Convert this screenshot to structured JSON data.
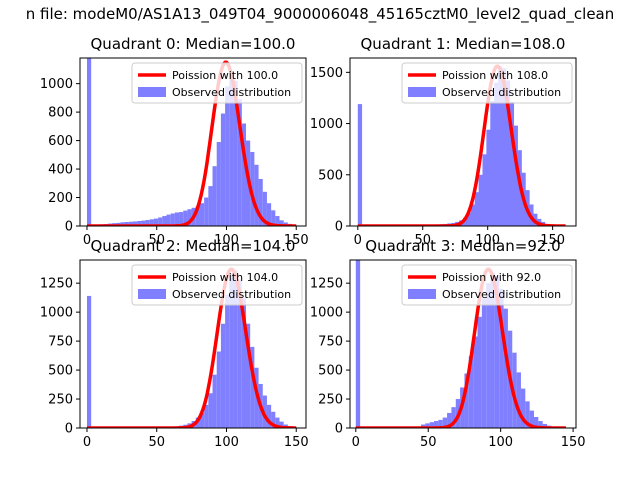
{
  "figure": {
    "title": "n file: modeM0/AS1A13_049T04_9000006048_45165cztM0_level2_quad_clean"
  },
  "colors": {
    "observed": "#7f7fff",
    "poisson": "#ff0000",
    "axes": "#000000"
  },
  "legend_labels": [
    "Poission with",
    "Observed distribution"
  ],
  "chart_data": [
    {
      "type": "bar",
      "title": "Quadrant 0: Median=100.0",
      "median": 100.0,
      "legend": [
        "Poission with 100.0",
        "Observed distribution"
      ],
      "xlim": [
        -5,
        157
      ],
      "ylim": [
        0,
        1180
      ],
      "xticks": [
        0,
        50,
        100,
        150
      ],
      "yticks": [
        0,
        200,
        400,
        600,
        800,
        1000
      ],
      "bin_width": 3,
      "hist_bins": [
        [
          0,
          1180
        ],
        [
          3,
          8
        ],
        [
          6,
          10
        ],
        [
          9,
          12
        ],
        [
          12,
          14
        ],
        [
          15,
          17
        ],
        [
          18,
          20
        ],
        [
          21,
          22
        ],
        [
          24,
          26
        ],
        [
          27,
          28
        ],
        [
          30,
          30
        ],
        [
          33,
          32
        ],
        [
          36,
          35
        ],
        [
          39,
          38
        ],
        [
          42,
          42
        ],
        [
          45,
          47
        ],
        [
          48,
          52
        ],
        [
          51,
          60
        ],
        [
          54,
          70
        ],
        [
          57,
          80
        ],
        [
          60,
          88
        ],
        [
          63,
          95
        ],
        [
          66,
          98
        ],
        [
          69,
          108
        ],
        [
          72,
          118
        ],
        [
          75,
          128
        ],
        [
          78,
          140
        ],
        [
          81,
          160
        ],
        [
          84,
          200
        ],
        [
          87,
          280
        ],
        [
          90,
          420
        ],
        [
          93,
          590
        ],
        [
          96,
          790
        ],
        [
          99,
          980
        ],
        [
          102,
          1060
        ],
        [
          105,
          1020
        ],
        [
          108,
          890
        ],
        [
          111,
          720
        ],
        [
          114,
          600
        ],
        [
          117,
          520
        ],
        [
          120,
          430
        ],
        [
          123,
          330
        ],
        [
          126,
          240
        ],
        [
          129,
          160
        ],
        [
          132,
          110
        ],
        [
          135,
          70
        ],
        [
          138,
          40
        ],
        [
          141,
          25
        ],
        [
          144,
          15
        ],
        [
          147,
          8
        ]
      ],
      "poisson_mean": 100,
      "poisson_peak": 1150,
      "poisson_x": [
        0,
        150
      ]
    },
    {
      "type": "bar",
      "title": "Quadrant 1: Median=108.0",
      "median": 108.0,
      "legend": [
        "Poission with 108.0",
        "Observed distribution"
      ],
      "xlim": [
        -6,
        168
      ],
      "ylim": [
        0,
        1640
      ],
      "xticks": [
        0,
        50,
        100,
        150
      ],
      "yticks": [
        0,
        500,
        1000,
        1500
      ],
      "bin_width": 3.3,
      "hist_bins": [
        [
          0,
          1190
        ],
        [
          60,
          15
        ],
        [
          63,
          18
        ],
        [
          66,
          20
        ],
        [
          69,
          25
        ],
        [
          72,
          30
        ],
        [
          75,
          40
        ],
        [
          78,
          55
        ],
        [
          81,
          80
        ],
        [
          84,
          130
        ],
        [
          87,
          210
        ],
        [
          90,
          330
        ],
        [
          93,
          500
        ],
        [
          96,
          700
        ],
        [
          99,
          940
        ],
        [
          102,
          1220
        ],
        [
          105,
          1400
        ],
        [
          108,
          1560
        ],
        [
          111,
          1540
        ],
        [
          114,
          1420
        ],
        [
          117,
          1210
        ],
        [
          120,
          980
        ],
        [
          123,
          740
        ],
        [
          126,
          520
        ],
        [
          129,
          350
        ],
        [
          132,
          210
        ],
        [
          135,
          120
        ],
        [
          138,
          70
        ],
        [
          141,
          40
        ],
        [
          144,
          20
        ],
        [
          147,
          12
        ],
        [
          150,
          8
        ]
      ],
      "poisson_mean": 108,
      "poisson_peak": 1560,
      "poisson_x": [
        0,
        160
      ]
    },
    {
      "type": "bar",
      "title": "Quadrant 2: Median=104.0",
      "median": 104.0,
      "legend": [
        "Poission with 104.0",
        "Observed distribution"
      ],
      "xlim": [
        -5,
        157
      ],
      "ylim": [
        0,
        1450
      ],
      "xticks": [
        0,
        50,
        100,
        150
      ],
      "yticks": [
        0,
        250,
        500,
        750,
        1000,
        1250
      ],
      "bin_width": 3,
      "hist_bins": [
        [
          0,
          1140
        ],
        [
          57,
          10
        ],
        [
          60,
          12
        ],
        [
          63,
          15
        ],
        [
          66,
          20
        ],
        [
          69,
          28
        ],
        [
          72,
          40
        ],
        [
          75,
          60
        ],
        [
          78,
          90
        ],
        [
          81,
          130
        ],
        [
          84,
          200
        ],
        [
          87,
          300
        ],
        [
          90,
          460
        ],
        [
          93,
          660
        ],
        [
          96,
          900
        ],
        [
          99,
          1150
        ],
        [
          102,
          1330
        ],
        [
          105,
          1360
        ],
        [
          108,
          1280
        ],
        [
          111,
          1120
        ],
        [
          114,
          900
        ],
        [
          117,
          700
        ],
        [
          120,
          520
        ],
        [
          123,
          380
        ],
        [
          126,
          280
        ],
        [
          129,
          200
        ],
        [
          132,
          140
        ],
        [
          135,
          90
        ],
        [
          138,
          55
        ],
        [
          141,
          30
        ],
        [
          144,
          15
        ],
        [
          147,
          8
        ]
      ],
      "poisson_mean": 104,
      "poisson_peak": 1370,
      "poisson_x": [
        0,
        150
      ]
    },
    {
      "type": "bar",
      "title": "Quadrant 3: Median=92.0",
      "median": 92.0,
      "legend": [
        "Poission with 92.0",
        "Observed distribution"
      ],
      "xlim": [
        -4,
        152
      ],
      "ylim": [
        0,
        1450
      ],
      "xticks": [
        0,
        50,
        100,
        150
      ],
      "yticks": [
        0,
        250,
        500,
        750,
        1000,
        1250
      ],
      "bin_width": 3,
      "hist_bins": [
        [
          0,
          1450
        ],
        [
          45,
          30
        ],
        [
          48,
          40
        ],
        [
          51,
          50
        ],
        [
          54,
          60
        ],
        [
          57,
          70
        ],
        [
          60,
          90
        ],
        [
          63,
          130
        ],
        [
          66,
          180
        ],
        [
          69,
          250
        ],
        [
          72,
          350
        ],
        [
          75,
          470
        ],
        [
          78,
          620
        ],
        [
          81,
          790
        ],
        [
          84,
          960
        ],
        [
          87,
          1120
        ],
        [
          90,
          1250
        ],
        [
          93,
          1340
        ],
        [
          96,
          1310
        ],
        [
          99,
          1200
        ],
        [
          102,
          1030
        ],
        [
          105,
          840
        ],
        [
          108,
          650
        ],
        [
          111,
          480
        ],
        [
          114,
          340
        ],
        [
          117,
          230
        ],
        [
          120,
          150
        ],
        [
          123,
          95
        ],
        [
          126,
          60
        ],
        [
          129,
          35
        ],
        [
          132,
          20
        ],
        [
          135,
          10
        ]
      ],
      "poisson_mean": 92,
      "poisson_peak": 1370,
      "poisson_x": [
        0,
        145
      ]
    }
  ]
}
